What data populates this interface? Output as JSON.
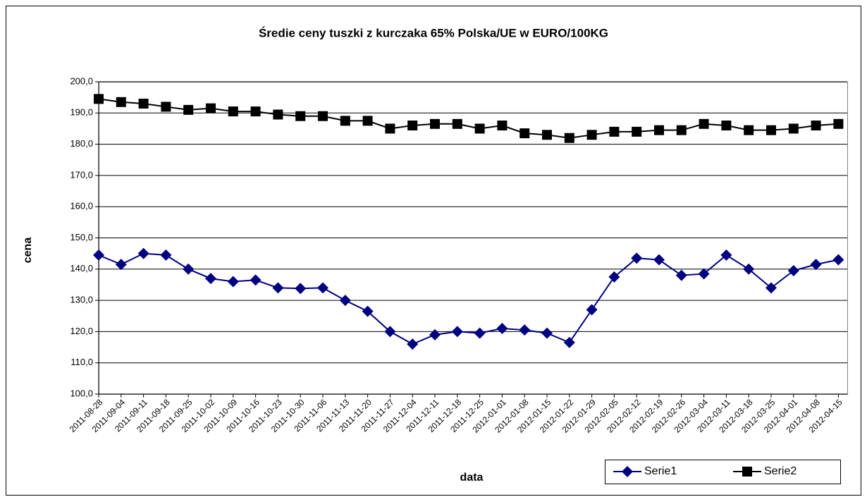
{
  "chart_data": {
    "type": "line",
    "title": "Średie ceny tuszki z kurczaka 65% Polska/UE w EURO/100KG",
    "x_label": "data",
    "y_label": "cena",
    "categories": [
      "2011-08-28",
      "2011-09-04",
      "2011-09-11",
      "2011-09-18",
      "2011-09-25",
      "2011-10-02",
      "2011-10-09",
      "2011-10-16",
      "2011-10-23",
      "2011-10-30",
      "2011-11-06",
      "2011-11-13",
      "2011-11-20",
      "2011-11-27",
      "2011-12-04",
      "2011-12-11",
      "2011-12-18",
      "2011-12-25",
      "2012-01-01",
      "2012-01-08",
      "2012-01-15",
      "2012-01-22",
      "2012-01-29",
      "2012-02-05",
      "2012-02-12",
      "2012-02-19",
      "2012-02-26",
      "2012-03-04",
      "2012-03-11",
      "2012-03-18",
      "2012-03-25",
      "2012-04-01",
      "2012-04-08",
      "2012-04-15"
    ],
    "series": [
      {
        "name": "Serie1",
        "color": "#000080",
        "marker": "diamond",
        "values": [
          144.5,
          141.5,
          145,
          144.5,
          140,
          137,
          136,
          136.5,
          134,
          133.8,
          134,
          130,
          126.5,
          120,
          116,
          119,
          120,
          119.5,
          121,
          120.5,
          119.5,
          116.5,
          127,
          137.5,
          143.5,
          143,
          138,
          138.5,
          144.5,
          140,
          134,
          139.5,
          141.5,
          143
        ]
      },
      {
        "name": "Serie2",
        "color": "#000000",
        "marker": "square",
        "values": [
          194.5,
          193.5,
          193,
          192,
          191,
          191.5,
          190.5,
          190.5,
          189.5,
          189,
          189,
          187.5,
          187.5,
          185,
          186,
          186.5,
          186.5,
          185,
          186,
          183.5,
          183,
          182,
          183,
          184,
          184,
          184.5,
          184.5,
          186.5,
          186,
          184.5,
          184.5,
          185,
          186,
          186.5
        ]
      }
    ],
    "ylim": [
      100,
      200
    ],
    "yticks": [
      {
        "value": 100,
        "label": "100,0"
      },
      {
        "value": 110,
        "label": "110,0"
      },
      {
        "value": 120,
        "label": "120,0"
      },
      {
        "value": 130,
        "label": "130,0"
      },
      {
        "value": 140,
        "label": "140,0"
      },
      {
        "value": 150,
        "label": "150,0"
      },
      {
        "value": 160,
        "label": "160,0"
      },
      {
        "value": 170,
        "label": "170,0"
      },
      {
        "value": 180,
        "label": "180,0"
      },
      {
        "value": 190,
        "label": "190,0"
      },
      {
        "value": 200,
        "label": "200,0"
      }
    ],
    "grid": true,
    "legend_position": "bottom-right"
  }
}
